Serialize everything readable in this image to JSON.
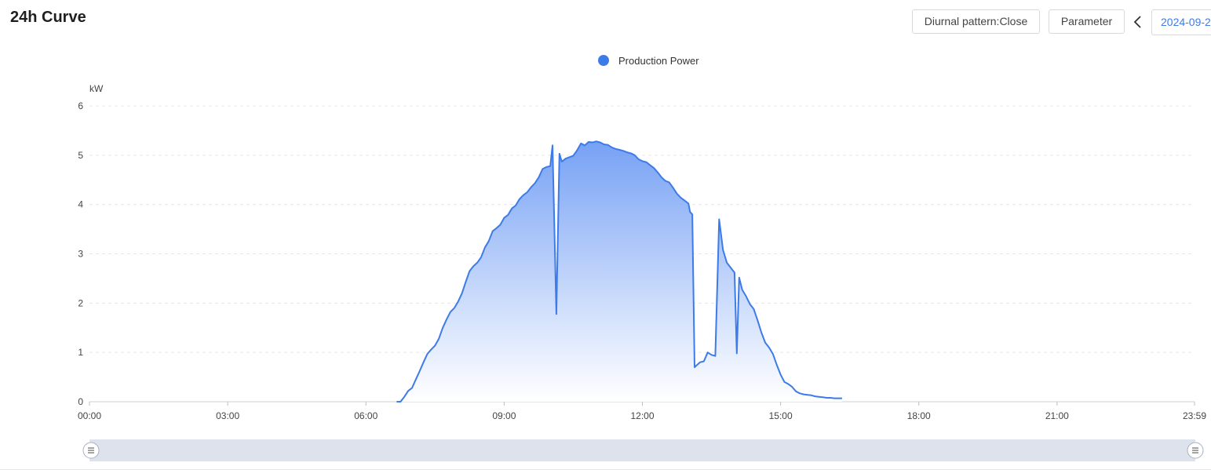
{
  "header": {
    "title": "24h Curve",
    "diurnal_label": "Diurnal pattern:Close",
    "parameter_label": "Parameter",
    "prev_icon": "chevron-left-icon",
    "date_value": "2024-09-2"
  },
  "colors": {
    "series_line": "#3d7be8",
    "series_fill_top": "#6f9cf4",
    "legend_dot": "#3d7be8",
    "grid": "#e8e8e8",
    "slider_track": "#dde2ec"
  },
  "chart_data": {
    "type": "area",
    "ylabel": "kW",
    "ylim": [
      0,
      6
    ],
    "yticks": [
      "0",
      "1",
      "2",
      "3",
      "4",
      "5",
      "6"
    ],
    "xlim_minutes": [
      0,
      1439
    ],
    "xticks": [
      "00:00",
      "03:00",
      "06:00",
      "09:00",
      "12:00",
      "15:00",
      "18:00",
      "21:00",
      "23:59"
    ],
    "legend": {
      "placement": "top-center"
    },
    "grid": "horizontal-dashed",
    "series": [
      {
        "name": "Production Power",
        "points": [
          [
            "06:40",
            0
          ],
          [
            "06:45",
            0
          ],
          [
            "06:50",
            0.1
          ],
          [
            "06:55",
            0.22
          ],
          [
            "07:00",
            0.28
          ],
          [
            "07:05",
            0.45
          ],
          [
            "07:10",
            0.62
          ],
          [
            "07:15",
            0.8
          ],
          [
            "07:20",
            0.97
          ],
          [
            "07:25",
            1.06
          ],
          [
            "07:30",
            1.14
          ],
          [
            "07:35",
            1.28
          ],
          [
            "07:40",
            1.5
          ],
          [
            "07:45",
            1.67
          ],
          [
            "07:50",
            1.82
          ],
          [
            "07:55",
            1.9
          ],
          [
            "08:00",
            2.03
          ],
          [
            "08:05",
            2.2
          ],
          [
            "08:10",
            2.43
          ],
          [
            "08:15",
            2.65
          ],
          [
            "08:20",
            2.75
          ],
          [
            "08:25",
            2.82
          ],
          [
            "08:30",
            2.93
          ],
          [
            "08:35",
            3.13
          ],
          [
            "08:40",
            3.26
          ],
          [
            "08:45",
            3.46
          ],
          [
            "08:50",
            3.52
          ],
          [
            "08:55",
            3.59
          ],
          [
            "09:00",
            3.73
          ],
          [
            "09:05",
            3.79
          ],
          [
            "09:10",
            3.92
          ],
          [
            "09:15",
            3.98
          ],
          [
            "09:20",
            4.11
          ],
          [
            "09:25",
            4.19
          ],
          [
            "09:30",
            4.25
          ],
          [
            "09:35",
            4.35
          ],
          [
            "09:40",
            4.43
          ],
          [
            "09:45",
            4.55
          ],
          [
            "09:50",
            4.72
          ],
          [
            "09:55",
            4.76
          ],
          [
            "10:00",
            4.78
          ],
          [
            "10:03",
            5.2
          ],
          [
            "10:08",
            1.78
          ],
          [
            "10:12",
            5.03
          ],
          [
            "10:15",
            4.87
          ],
          [
            "10:20",
            4.93
          ],
          [
            "10:25",
            4.96
          ],
          [
            "10:30",
            4.99
          ],
          [
            "10:35",
            5.1
          ],
          [
            "10:40",
            5.24
          ],
          [
            "10:45",
            5.2
          ],
          [
            "10:50",
            5.27
          ],
          [
            "10:55",
            5.26
          ],
          [
            "11:00",
            5.28
          ],
          [
            "11:05",
            5.26
          ],
          [
            "11:10",
            5.22
          ],
          [
            "11:15",
            5.21
          ],
          [
            "11:20",
            5.16
          ],
          [
            "11:25",
            5.13
          ],
          [
            "11:30",
            5.11
          ],
          [
            "11:35",
            5.09
          ],
          [
            "11:40",
            5.06
          ],
          [
            "11:45",
            5.04
          ],
          [
            "11:50",
            5.0
          ],
          [
            "11:55",
            4.92
          ],
          [
            "12:00",
            4.88
          ],
          [
            "12:05",
            4.86
          ],
          [
            "12:10",
            4.8
          ],
          [
            "12:15",
            4.74
          ],
          [
            "12:20",
            4.65
          ],
          [
            "12:25",
            4.55
          ],
          [
            "12:30",
            4.48
          ],
          [
            "12:35",
            4.45
          ],
          [
            "12:40",
            4.34
          ],
          [
            "12:45",
            4.22
          ],
          [
            "12:50",
            4.14
          ],
          [
            "12:55",
            4.08
          ],
          [
            "13:00",
            4.02
          ],
          [
            "13:02",
            3.85
          ],
          [
            "13:05",
            3.8
          ],
          [
            "13:08",
            0.7
          ],
          [
            "13:15",
            0.8
          ],
          [
            "13:20",
            0.82
          ],
          [
            "13:25",
            1.0
          ],
          [
            "13:30",
            0.95
          ],
          [
            "13:35",
            0.93
          ],
          [
            "13:40",
            3.7
          ],
          [
            "13:45",
            3.08
          ],
          [
            "13:50",
            2.82
          ],
          [
            "13:55",
            2.72
          ],
          [
            "14:00",
            2.62
          ],
          [
            "14:03",
            0.98
          ],
          [
            "14:06",
            2.52
          ],
          [
            "14:10",
            2.27
          ],
          [
            "14:15",
            2.14
          ],
          [
            "14:20",
            1.98
          ],
          [
            "14:25",
            1.88
          ],
          [
            "14:30",
            1.65
          ],
          [
            "14:35",
            1.4
          ],
          [
            "14:40",
            1.2
          ],
          [
            "14:45",
            1.1
          ],
          [
            "14:50",
            0.97
          ],
          [
            "14:55",
            0.75
          ],
          [
            "15:00",
            0.55
          ],
          [
            "15:05",
            0.4
          ],
          [
            "15:10",
            0.36
          ],
          [
            "15:15",
            0.3
          ],
          [
            "15:20",
            0.21
          ],
          [
            "15:25",
            0.17
          ],
          [
            "15:30",
            0.15
          ],
          [
            "15:35",
            0.14
          ],
          [
            "15:40",
            0.13
          ],
          [
            "15:45",
            0.11
          ],
          [
            "15:50",
            0.1
          ],
          [
            "15:55",
            0.09
          ],
          [
            "16:00",
            0.08
          ],
          [
            "16:05",
            0.08
          ],
          [
            "16:10",
            0.07
          ],
          [
            "16:15",
            0.07
          ],
          [
            "16:20",
            0.07
          ]
        ]
      }
    ]
  }
}
